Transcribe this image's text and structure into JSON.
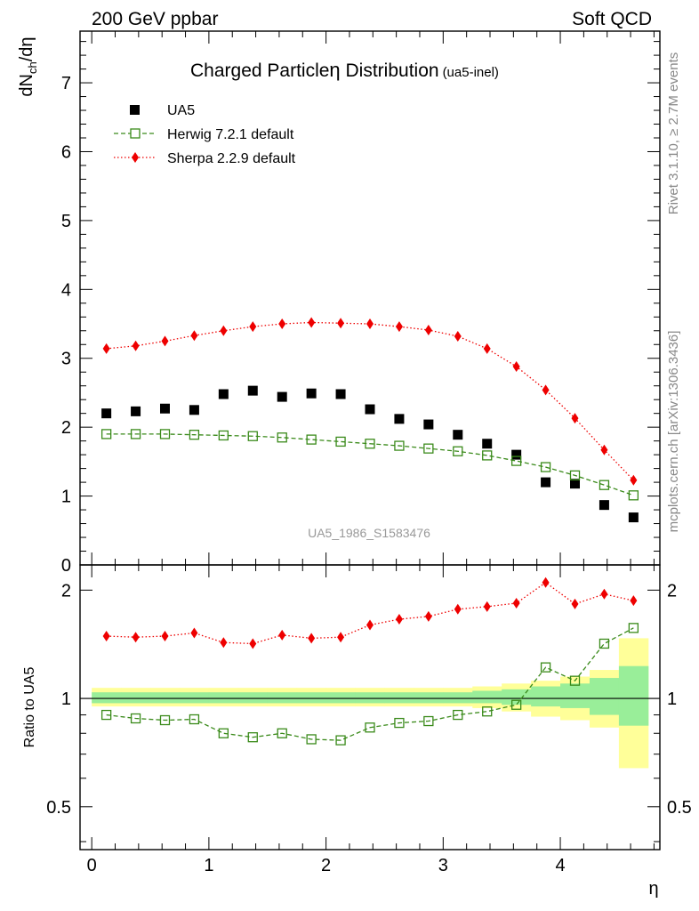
{
  "header": {
    "left": "200 GeV ppbar",
    "right": "Soft QCD"
  },
  "side": {
    "rivet": "Rivet 3.1.10, ≥ 2.7M events",
    "mcplots": "mcplots.cern.ch [arXiv:1306.3436]"
  },
  "plot": {
    "title": "Charged Particle",
    "title_symbol": "η",
    "title_rest": " Distribution",
    "title_tag": "(ua5-inel)",
    "watermark": "UA5_1986_S1583476"
  },
  "colors": {
    "data": "#000000",
    "herwig": "#3a8a1a",
    "sherpa": "#ee0000",
    "band_yellow": "#ffff99",
    "band_green": "#99ee99"
  },
  "chart_data": {
    "type": "scatter",
    "x": [
      0.125,
      0.375,
      0.625,
      0.875,
      1.125,
      1.375,
      1.625,
      1.875,
      2.125,
      2.375,
      2.625,
      2.875,
      3.125,
      3.375,
      3.625,
      3.875,
      4.125,
      4.375,
      4.625
    ],
    "xlabel": "η",
    "xlim": [
      -0.1,
      4.85
    ],
    "xticks": [
      0,
      1,
      2,
      3,
      4
    ],
    "main": {
      "ylabel": "dN_ch/dη",
      "ylabel_main": "dN",
      "ylabel_sub": "ch",
      "ylabel_rest": "/dη",
      "ylim": [
        0,
        7.75
      ],
      "yticks": [
        0,
        1,
        2,
        3,
        4,
        5,
        6,
        7
      ],
      "series": [
        {
          "name": "UA5",
          "key": "data",
          "marker": "square-filled",
          "values": [
            2.2,
            2.23,
            2.27,
            2.25,
            2.48,
            2.53,
            2.44,
            2.49,
            2.48,
            2.26,
            2.12,
            2.04,
            1.89,
            1.76,
            1.6,
            1.2,
            1.18,
            0.87,
            0.69
          ]
        },
        {
          "name": "Herwig 7.2.1 default",
          "key": "herwig",
          "marker": "square-open",
          "line": "dashed",
          "values": [
            1.9,
            1.9,
            1.9,
            1.89,
            1.88,
            1.87,
            1.85,
            1.82,
            1.79,
            1.76,
            1.73,
            1.69,
            1.65,
            1.59,
            1.51,
            1.42,
            1.3,
            1.16,
            1.01
          ]
        },
        {
          "name": "Sherpa 2.2.9 default",
          "key": "sherpa",
          "marker": "diamond",
          "line": "dotted",
          "values": [
            3.14,
            3.18,
            3.25,
            3.33,
            3.4,
            3.46,
            3.5,
            3.52,
            3.51,
            3.5,
            3.46,
            3.41,
            3.32,
            3.14,
            2.88,
            2.54,
            2.13,
            1.67,
            1.23
          ]
        }
      ]
    },
    "ratio": {
      "ylabel": "Ratio to UA5",
      "ylim": [
        0.38,
        2.35
      ],
      "yticks": [
        0.5,
        1,
        2
      ],
      "yticklabels": [
        "0.5",
        "1",
        "2"
      ],
      "band_outer": [
        [
          0.95,
          1.07
        ],
        [
          0.95,
          1.07
        ],
        [
          0.95,
          1.07
        ],
        [
          0.95,
          1.07
        ],
        [
          0.95,
          1.07
        ],
        [
          0.95,
          1.07
        ],
        [
          0.95,
          1.07
        ],
        [
          0.95,
          1.07
        ],
        [
          0.95,
          1.07
        ],
        [
          0.95,
          1.07
        ],
        [
          0.95,
          1.07
        ],
        [
          0.95,
          1.07
        ],
        [
          0.95,
          1.07
        ],
        [
          0.94,
          1.08
        ],
        [
          0.92,
          1.1
        ],
        [
          0.89,
          1.12
        ],
        [
          0.87,
          1.15
        ],
        [
          0.83,
          1.2
        ],
        [
          0.64,
          1.47
        ]
      ],
      "band_inner": [
        [
          0.97,
          1.04
        ],
        [
          0.97,
          1.04
        ],
        [
          0.97,
          1.04
        ],
        [
          0.97,
          1.04
        ],
        [
          0.97,
          1.04
        ],
        [
          0.97,
          1.04
        ],
        [
          0.97,
          1.04
        ],
        [
          0.97,
          1.04
        ],
        [
          0.97,
          1.04
        ],
        [
          0.97,
          1.04
        ],
        [
          0.97,
          1.04
        ],
        [
          0.97,
          1.04
        ],
        [
          0.97,
          1.04
        ],
        [
          0.97,
          1.05
        ],
        [
          0.96,
          1.06
        ],
        [
          0.95,
          1.08
        ],
        [
          0.94,
          1.1
        ],
        [
          0.9,
          1.14
        ],
        [
          0.84,
          1.23
        ]
      ],
      "series": [
        {
          "name": "Herwig 7.2.1 default",
          "key": "herwig",
          "marker": "square-open",
          "line": "dashed",
          "values": [
            0.9,
            0.88,
            0.87,
            0.875,
            0.8,
            0.78,
            0.8,
            0.77,
            0.765,
            0.83,
            0.855,
            0.865,
            0.9,
            0.92,
            0.96,
            1.22,
            1.12,
            1.42,
            1.57
          ]
        },
        {
          "name": "Sherpa 2.2.9 default",
          "key": "sherpa",
          "marker": "diamond",
          "line": "dotted",
          "values": [
            1.49,
            1.48,
            1.49,
            1.52,
            1.43,
            1.42,
            1.5,
            1.47,
            1.48,
            1.6,
            1.66,
            1.69,
            1.77,
            1.8,
            1.84,
            2.1,
            1.83,
            1.95,
            1.87
          ]
        }
      ]
    }
  }
}
